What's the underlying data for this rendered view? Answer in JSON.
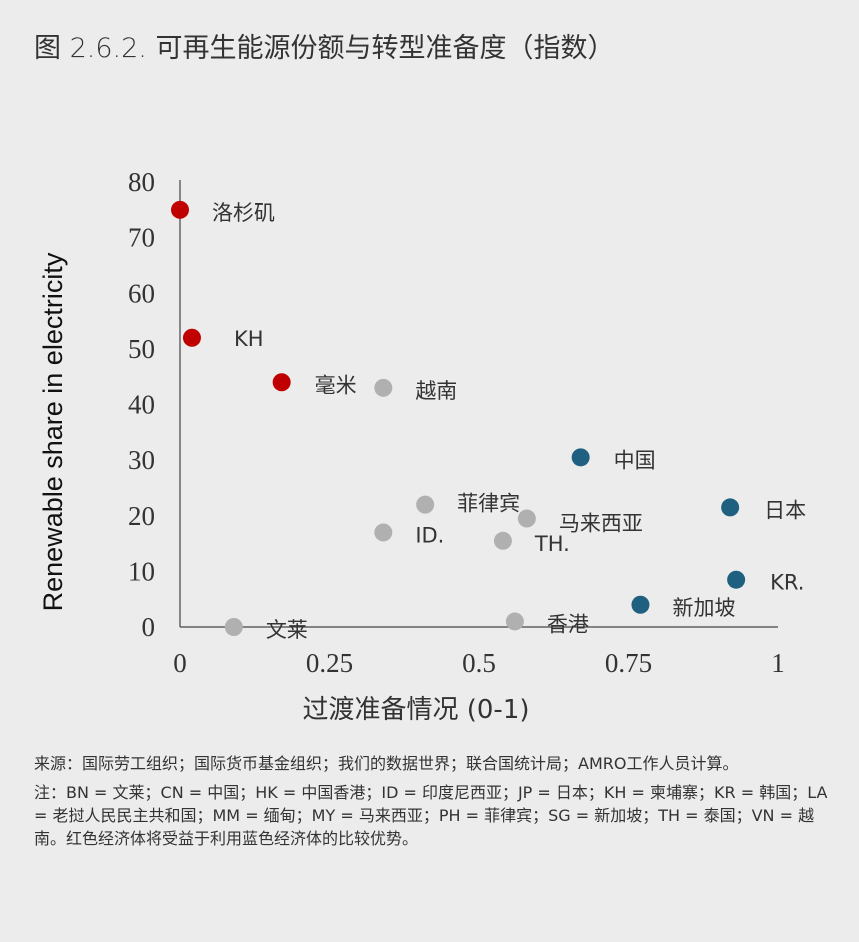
{
  "title": "图 2.6.2. 可再生能源份额与转型准备度（指数）",
  "source": "来源：国际劳工组织；国际货币基金组织；我们的数据世界；联合国统计局；AMRO工作人员计算。",
  "note": "注：BN = 文莱；CN = 中国；HK = 中国香港；ID = 印度尼西亚；JP = 日本；KH = 柬埔寨；KR = 韩国；LA = 老挝人民民主共和国；MM = 缅甸；MY = 马来西亚；PH = 菲律宾；SG = 新加坡；TH = 泰国；VN = 越南。红色经济体将受益于利用蓝色经济体的比较优势。",
  "colors": {
    "red": "#c00000",
    "grey": "#b0b0b0",
    "blue": "#1f5f7f"
  },
  "chart_data": {
    "type": "scatter",
    "xlabel": "过渡准备情况 (0-1)",
    "ylabel": "Renewable share in electricity",
    "xlim": [
      0,
      1
    ],
    "ylim": [
      0,
      80
    ],
    "xticks": [
      0,
      0.25,
      0.5,
      0.75,
      1
    ],
    "xtick_labels": [
      "0",
      "0.25",
      "0.5",
      "0.75",
      "1"
    ],
    "yticks": [
      0,
      10,
      20,
      30,
      40,
      50,
      60,
      70,
      80
    ],
    "grid": false,
    "points": [
      {
        "label": "洛杉矶",
        "x": 0.0,
        "y": 75,
        "color": "red"
      },
      {
        "label": "KH",
        "x": 0.02,
        "y": 52,
        "color": "red"
      },
      {
        "label": "毫米",
        "x": 0.17,
        "y": 44,
        "color": "red"
      },
      {
        "label": "越南",
        "x": 0.34,
        "y": 43,
        "color": "grey"
      },
      {
        "label": "中国",
        "x": 0.67,
        "y": 30.5,
        "color": "blue"
      },
      {
        "label": "日本",
        "x": 0.92,
        "y": 21.5,
        "color": "blue"
      },
      {
        "label": "菲律宾",
        "x": 0.41,
        "y": 22,
        "color": "grey"
      },
      {
        "label": "马来西亚",
        "x": 0.58,
        "y": 19.5,
        "color": "grey"
      },
      {
        "label": "ID.",
        "x": 0.34,
        "y": 17,
        "color": "grey"
      },
      {
        "label": "TH.",
        "x": 0.54,
        "y": 15.5,
        "color": "grey"
      },
      {
        "label": "KR.",
        "x": 0.93,
        "y": 8.5,
        "color": "blue"
      },
      {
        "label": "新加坡",
        "x": 0.77,
        "y": 4,
        "color": "blue"
      },
      {
        "label": "香港",
        "x": 0.56,
        "y": 1,
        "color": "grey"
      },
      {
        "label": "文莱",
        "x": 0.09,
        "y": 0,
        "color": "grey"
      }
    ]
  }
}
